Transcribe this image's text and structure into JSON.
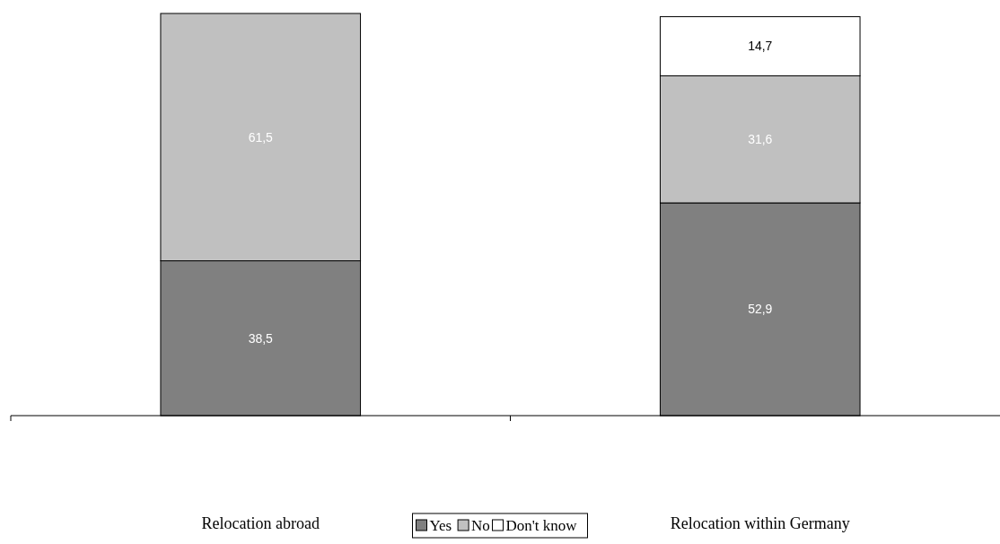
{
  "chart_data": {
    "type": "bar",
    "stacked": true,
    "categories": [
      "Relocation abroad",
      "Relocation within Germany"
    ],
    "series": [
      {
        "name": "Yes",
        "color": "#808080",
        "values": [
          38.5,
          52.9
        ],
        "value_labels": [
          "38,5",
          "52,9"
        ]
      },
      {
        "name": "No",
        "color": "#c0c0c0",
        "values": [
          61.5,
          31.6
        ],
        "value_labels": [
          "61,5",
          "31,6"
        ]
      },
      {
        "name": "Don't know",
        "color": "#ffffff",
        "values": [
          null,
          14.7
        ],
        "value_labels": [
          null,
          "14,7"
        ]
      }
    ],
    "legend": "bottom"
  }
}
